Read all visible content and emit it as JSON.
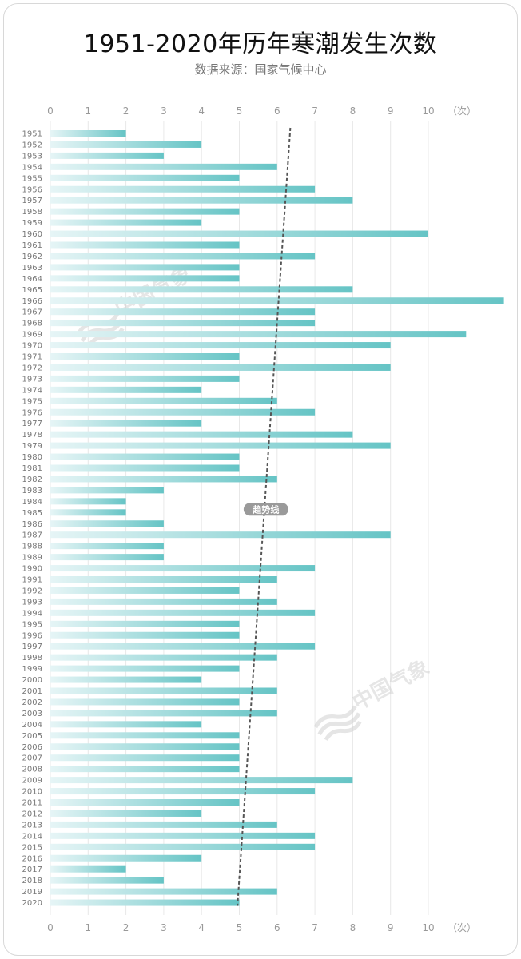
{
  "title": "1951-2020年历年寒潮发生次数",
  "subtitle": "数据来源：国家气候中心",
  "watermark": "中国气象",
  "colors": {
    "bar_start": "#e6f5f6",
    "bar_end": "#65c4c5",
    "trend": "#555555",
    "grid": "#e8e8e8",
    "label_bg": "#9a9a9a"
  },
  "chart_data": {
    "type": "bar",
    "orientation": "horizontal",
    "title": "1951-2020年历年寒潮发生次数",
    "source": "数据来源：国家气候中心",
    "x_axis": {
      "ticks": [
        "0",
        "1",
        "2",
        "3",
        "4",
        "5",
        "6",
        "7",
        "8",
        "9",
        "10"
      ],
      "unit": "（次）",
      "range": [
        0,
        12
      ]
    },
    "grid": true,
    "categories": [
      "1951",
      "1952",
      "1953",
      "1954",
      "1955",
      "1956",
      "1957",
      "1958",
      "1959",
      "1960",
      "1961",
      "1962",
      "1963",
      "1964",
      "1965",
      "1966",
      "1967",
      "1968",
      "1969",
      "1970",
      "1971",
      "1972",
      "1973",
      "1974",
      "1975",
      "1976",
      "1977",
      "1978",
      "1979",
      "1980",
      "1981",
      "1982",
      "1983",
      "1984",
      "1985",
      "1986",
      "1987",
      "1988",
      "1989",
      "1990",
      "1991",
      "1992",
      "1993",
      "1994",
      "1995",
      "1996",
      "1997",
      "1998",
      "1999",
      "2000",
      "2001",
      "2002",
      "2003",
      "2004",
      "2005",
      "2006",
      "2007",
      "2008",
      "2009",
      "2010",
      "2011",
      "2012",
      "2013",
      "2014",
      "2015",
      "2016",
      "2017",
      "2018",
      "2019",
      "2020"
    ],
    "values": [
      2,
      4,
      3,
      6,
      5,
      7,
      8,
      5,
      4,
      10,
      5,
      7,
      5,
      5,
      8,
      12,
      7,
      7,
      11,
      9,
      5,
      9,
      5,
      4,
      6,
      7,
      4,
      8,
      9,
      5,
      5,
      6,
      3,
      2,
      2,
      3,
      9,
      3,
      3,
      7,
      6,
      5,
      6,
      7,
      5,
      5,
      7,
      6,
      5,
      4,
      6,
      5,
      6,
      4,
      5,
      5,
      5,
      5,
      8,
      7,
      5,
      4,
      6,
      7,
      7,
      4,
      2,
      3,
      6,
      5
    ],
    "trend": {
      "label": "趋势线",
      "start": {
        "year": "1951",
        "value": 6.35
      },
      "end": {
        "year": "2020",
        "value": 4.95
      }
    }
  }
}
